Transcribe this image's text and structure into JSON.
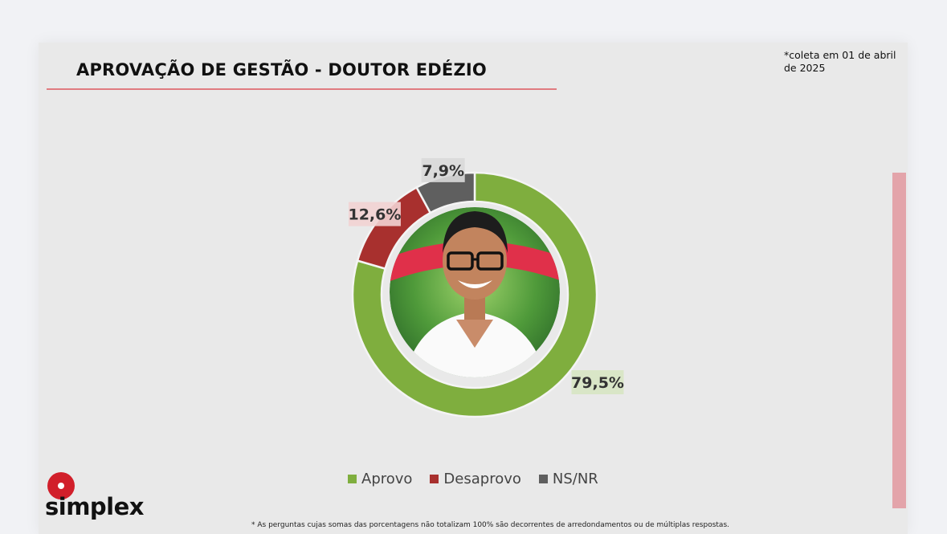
{
  "header": {
    "title": "APROVAÇÃO DE GESTÃO - DOUTOR EDÉZIO",
    "note": "*coleta em 01 de abril de 2025"
  },
  "chart_data": {
    "type": "pie",
    "title": "APROVAÇÃO DE GESTÃO - DOUTOR EDÉZIO",
    "categories": [
      "Aprovo",
      "Desaprovo",
      "NS/NR"
    ],
    "values": [
      79.5,
      12.6,
      7.9
    ],
    "labels": [
      "79,5%",
      "12,6%",
      "7,9%"
    ],
    "colors": [
      "#7fae3e",
      "#a8302e",
      "#5f5f5f"
    ],
    "donut": true,
    "legend_position": "bottom"
  },
  "legend": {
    "items": [
      {
        "label": "Aprovo",
        "color": "#7fae3e"
      },
      {
        "label": "Desaprovo",
        "color": "#a8302e"
      },
      {
        "label": "NS/NR",
        "color": "#5f5f5f"
      }
    ]
  },
  "brand": {
    "logo_text": "simplex",
    "accent": "#d11f2a"
  },
  "footer": {
    "footnote": "* As perguntas cujas somas das porcentagens não totalizam 100% são decorrentes de arredondamentos ou de múltiplas respostas."
  }
}
